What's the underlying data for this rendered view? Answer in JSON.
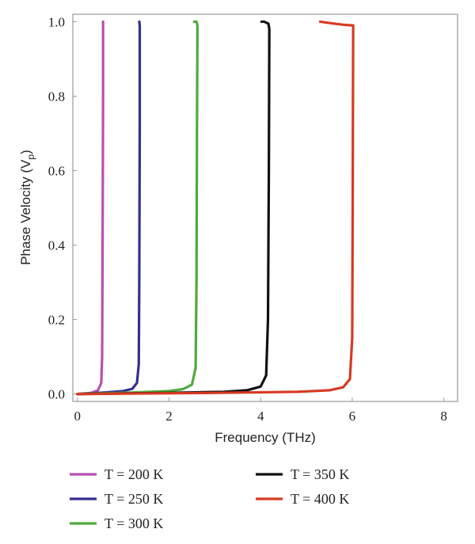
{
  "chart_data": {
    "type": "line",
    "title": "",
    "xlabel": "Frequency (THz)",
    "ylabel": "Phase Velocity (V",
    "ylabel_subscript": "p",
    "ylabel_close": ")",
    "xlim": [
      -0.1,
      8.3
    ],
    "ylim": [
      -0.02,
      1.02
    ],
    "xticks": [
      0,
      2,
      4,
      6,
      8
    ],
    "xtick_labels": [
      "0",
      "2",
      "4",
      "6",
      "8"
    ],
    "yticks": [
      0.0,
      0.2,
      0.4,
      0.6,
      0.8,
      1.0
    ],
    "ytick_labels": [
      "0.0",
      "0.2",
      "0.4",
      "0.6",
      "0.8",
      "1.0"
    ],
    "grid": false,
    "legend_position": "below",
    "series": [
      {
        "name": "T = 200 K",
        "color": "#b551b0",
        "x": [
          0.0,
          0.3,
          0.45,
          0.52,
          0.54,
          0.55,
          0.56,
          0.56
        ],
        "y": [
          0.0,
          0.003,
          0.01,
          0.03,
          0.1,
          0.4,
          0.8,
          1.0
        ]
      },
      {
        "name": "T = 250 K",
        "color": "#34308f",
        "x": [
          0.0,
          0.6,
          1.0,
          1.2,
          1.3,
          1.34,
          1.35,
          1.36,
          1.36,
          1.35
        ],
        "y": [
          0.0,
          0.004,
          0.008,
          0.014,
          0.03,
          0.08,
          0.3,
          0.7,
          0.99,
          1.0
        ]
      },
      {
        "name": "T = 300 K",
        "color": "#4faa3c",
        "x": [
          0.0,
          1.2,
          2.0,
          2.3,
          2.5,
          2.58,
          2.6,
          2.61,
          2.62,
          2.6,
          2.55
        ],
        "y": [
          0.0,
          0.004,
          0.008,
          0.013,
          0.025,
          0.07,
          0.3,
          0.7,
          0.99,
          1.0,
          1.0
        ]
      },
      {
        "name": "T = 350 K",
        "color": "#111111",
        "x": [
          0.0,
          2.0,
          3.2,
          3.7,
          4.0,
          4.12,
          4.16,
          4.18,
          4.19,
          4.17,
          4.08,
          4.02
        ],
        "y": [
          0.0,
          0.003,
          0.006,
          0.01,
          0.02,
          0.05,
          0.2,
          0.6,
          0.98,
          0.995,
          1.0,
          1.0
        ]
      },
      {
        "name": "T = 400 K",
        "color": "#d63a22",
        "x": [
          0.0,
          3.0,
          4.8,
          5.5,
          5.8,
          5.95,
          6.0,
          6.01,
          6.02,
          6.0,
          5.8,
          5.6,
          5.3
        ],
        "y": [
          0.0,
          0.003,
          0.006,
          0.01,
          0.018,
          0.04,
          0.15,
          0.5,
          0.99,
          0.99,
          0.992,
          0.995,
          1.0
        ]
      }
    ]
  }
}
